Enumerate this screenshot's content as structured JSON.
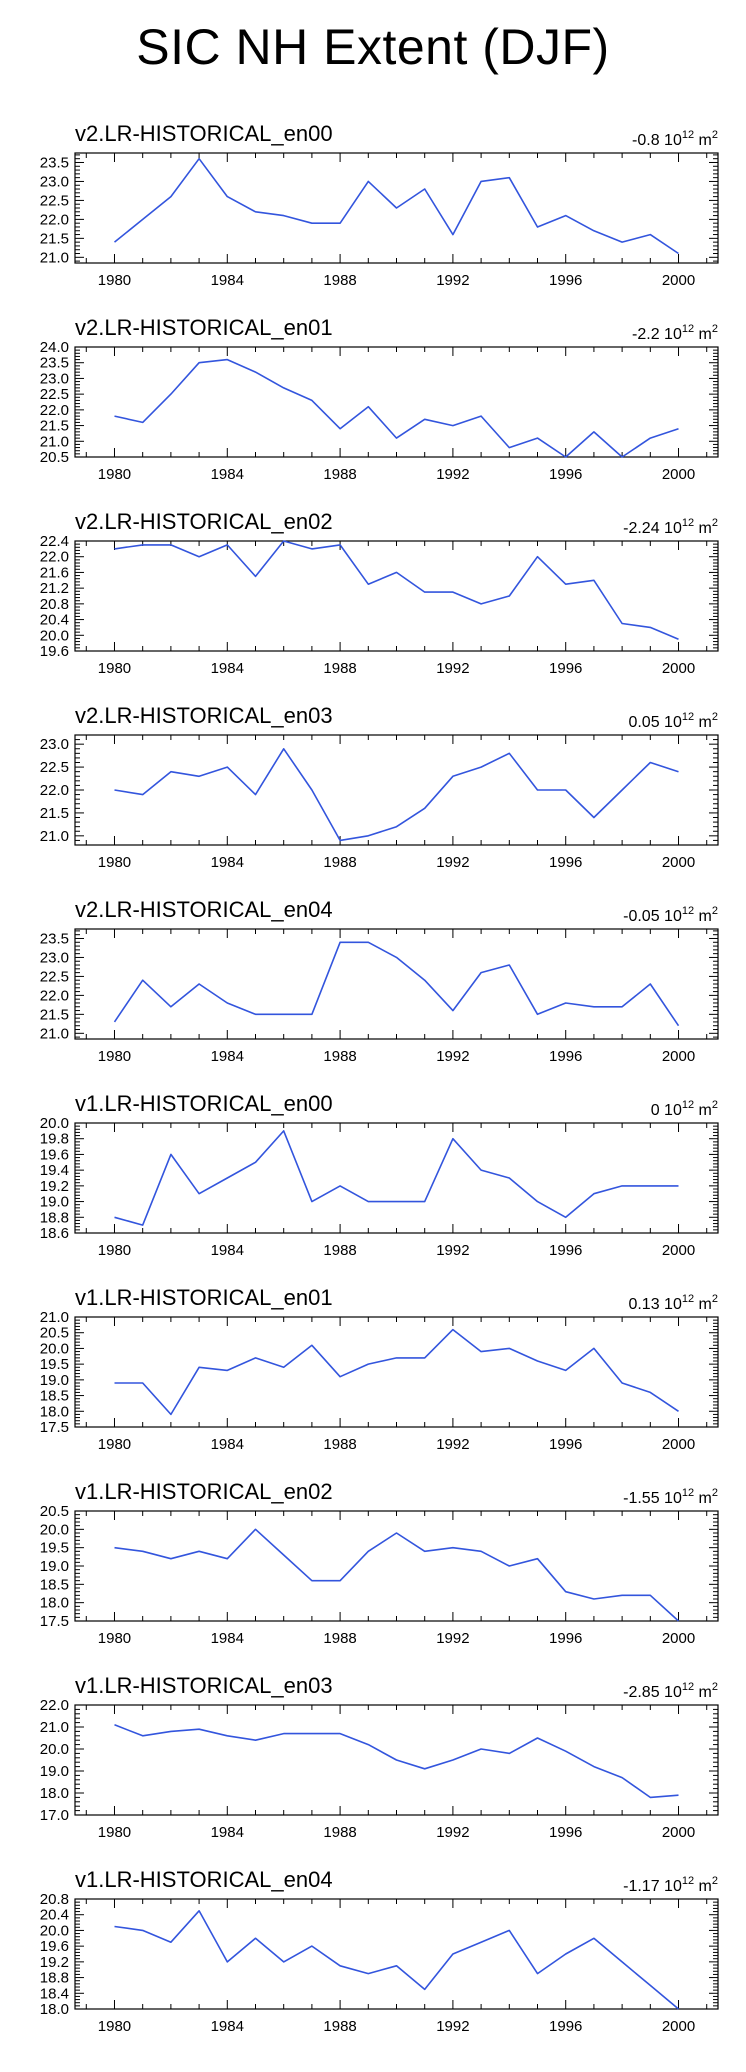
{
  "title": "SIC NH Extent (DJF)",
  "colors": {
    "line": "#3355dd",
    "axis": "#000000"
  },
  "chart_data": [
    {
      "type": "line",
      "title": "v2.LR-HISTORICAL_en00",
      "trend": {
        "value": "-0.8",
        "scale": "10",
        "exp": "12",
        "unit": "m",
        "unit_exp": "2"
      },
      "x": [
        1980,
        1981,
        1982,
        1983,
        1984,
        1985,
        1986,
        1987,
        1988,
        1989,
        1990,
        1991,
        1992,
        1993,
        1994,
        1995,
        1996,
        1997,
        1998,
        1999,
        2000
      ],
      "values": [
        21.4,
        22.0,
        22.6,
        23.6,
        22.6,
        22.2,
        22.1,
        21.9,
        21.9,
        23.0,
        22.3,
        22.8,
        21.6,
        23.0,
        23.1,
        21.8,
        22.1,
        21.7,
        21.4,
        21.6,
        21.1
      ],
      "xlim": [
        1978.6,
        2001.4
      ],
      "ylim": [
        20.85,
        23.75
      ],
      "xticks": [
        1980,
        1984,
        1988,
        1992,
        1996,
        2000
      ],
      "yticks": [
        21.0,
        21.5,
        22.0,
        22.5,
        23.0,
        23.5
      ],
      "ytick_labels": [
        "21.0",
        "21.5",
        "22.0",
        "22.5",
        "23.0",
        "23.5"
      ]
    },
    {
      "type": "line",
      "title": "v2.LR-HISTORICAL_en01",
      "trend": {
        "value": "-2.2",
        "scale": "10",
        "exp": "12",
        "unit": "m",
        "unit_exp": "2"
      },
      "x": [
        1980,
        1981,
        1982,
        1983,
        1984,
        1985,
        1986,
        1987,
        1988,
        1989,
        1990,
        1991,
        1992,
        1993,
        1994,
        1995,
        1996,
        1997,
        1998,
        1999,
        2000
      ],
      "values": [
        21.8,
        21.6,
        22.5,
        23.5,
        23.6,
        23.2,
        22.7,
        22.3,
        21.4,
        22.1,
        21.1,
        21.7,
        21.5,
        21.8,
        20.8,
        21.1,
        20.5,
        21.3,
        20.5,
        21.1,
        21.4
      ],
      "xlim": [
        1978.6,
        2001.4
      ],
      "ylim": [
        20.5,
        24.0
      ],
      "xticks": [
        1980,
        1984,
        1988,
        1992,
        1996,
        2000
      ],
      "yticks": [
        20.5,
        21.0,
        21.5,
        22.0,
        22.5,
        23.0,
        23.5,
        24.0
      ],
      "ytick_labels": [
        "20.5",
        "21.0",
        "21.5",
        "22.0",
        "22.5",
        "23.0",
        "23.5",
        "24.0"
      ]
    },
    {
      "type": "line",
      "title": "v2.LR-HISTORICAL_en02",
      "trend": {
        "value": "-2.24",
        "scale": "10",
        "exp": "12",
        "unit": "m",
        "unit_exp": "2"
      },
      "x": [
        1980,
        1981,
        1982,
        1983,
        1984,
        1985,
        1986,
        1987,
        1988,
        1989,
        1990,
        1991,
        1992,
        1993,
        1994,
        1995,
        1996,
        1997,
        1998,
        1999,
        2000
      ],
      "values": [
        22.2,
        22.3,
        22.3,
        22.0,
        22.3,
        21.5,
        22.4,
        22.2,
        22.3,
        21.3,
        21.6,
        21.1,
        21.1,
        20.8,
        21.0,
        22.0,
        21.3,
        21.4,
        20.3,
        20.2,
        19.9
      ],
      "xlim": [
        1978.6,
        2001.4
      ],
      "ylim": [
        19.6,
        22.4
      ],
      "xticks": [
        1980,
        1984,
        1988,
        1992,
        1996,
        2000
      ],
      "yticks": [
        19.6,
        20.0,
        20.4,
        20.8,
        21.2,
        21.6,
        22.0,
        22.4
      ],
      "ytick_labels": [
        "19.6",
        "20.0",
        "20.4",
        "20.8",
        "21.2",
        "21.6",
        "22.0",
        "22.4"
      ]
    },
    {
      "type": "line",
      "title": "v2.LR-HISTORICAL_en03",
      "trend": {
        "value": "0.05",
        "scale": "10",
        "exp": "12",
        "unit": "m",
        "unit_exp": "2"
      },
      "x": [
        1980,
        1981,
        1982,
        1983,
        1984,
        1985,
        1986,
        1987,
        1988,
        1989,
        1990,
        1991,
        1992,
        1993,
        1994,
        1995,
        1996,
        1997,
        1998,
        1999,
        2000
      ],
      "values": [
        22.0,
        21.9,
        22.4,
        22.3,
        22.5,
        21.9,
        22.9,
        22.0,
        20.9,
        21.0,
        21.2,
        21.6,
        22.3,
        22.5,
        22.8,
        22.0,
        22.0,
        21.4,
        22.0,
        22.6,
        22.4
      ],
      "xlim": [
        1978.6,
        2001.4
      ],
      "ylim": [
        20.8,
        23.2
      ],
      "xticks": [
        1980,
        1984,
        1988,
        1992,
        1996,
        2000
      ],
      "yticks": [
        21.0,
        21.5,
        22.0,
        22.5,
        23.0
      ],
      "ytick_labels": [
        "21.0",
        "21.5",
        "22.0",
        "22.5",
        "23.0"
      ]
    },
    {
      "type": "line",
      "title": "v2.LR-HISTORICAL_en04",
      "trend": {
        "value": "-0.05",
        "scale": "10",
        "exp": "12",
        "unit": "m",
        "unit_exp": "2"
      },
      "x": [
        1980,
        1981,
        1982,
        1983,
        1984,
        1985,
        1986,
        1987,
        1988,
        1989,
        1990,
        1991,
        1992,
        1993,
        1994,
        1995,
        1996,
        1997,
        1998,
        1999,
        2000
      ],
      "values": [
        21.3,
        22.4,
        21.7,
        22.3,
        21.8,
        21.5,
        21.5,
        21.5,
        23.4,
        23.4,
        23.0,
        22.4,
        21.6,
        22.6,
        22.8,
        21.5,
        21.8,
        21.7,
        21.7,
        22.3,
        21.2
      ],
      "xlim": [
        1978.6,
        2001.4
      ],
      "ylim": [
        20.85,
        23.75
      ],
      "xticks": [
        1980,
        1984,
        1988,
        1992,
        1996,
        2000
      ],
      "yticks": [
        21.0,
        21.5,
        22.0,
        22.5,
        23.0,
        23.5
      ],
      "ytick_labels": [
        "21.0",
        "21.5",
        "22.0",
        "22.5",
        "23.0",
        "23.5"
      ]
    },
    {
      "type": "line",
      "title": "v1.LR-HISTORICAL_en00",
      "trend": {
        "value": "0",
        "scale": "10",
        "exp": "12",
        "unit": "m",
        "unit_exp": "2"
      },
      "x": [
        1980,
        1981,
        1982,
        1983,
        1984,
        1985,
        1986,
        1987,
        1988,
        1989,
        1990,
        1991,
        1992,
        1993,
        1994,
        1995,
        1996,
        1997,
        1998,
        1999,
        2000
      ],
      "values": [
        18.8,
        18.7,
        19.6,
        19.1,
        19.3,
        19.5,
        19.9,
        19.0,
        19.2,
        19.0,
        19.0,
        19.0,
        19.8,
        19.4,
        19.3,
        19.0,
        18.8,
        19.1,
        19.2,
        19.2,
        19.2
      ],
      "xlim": [
        1978.6,
        2001.4
      ],
      "ylim": [
        18.6,
        20.0
      ],
      "xticks": [
        1980,
        1984,
        1988,
        1992,
        1996,
        2000
      ],
      "yticks": [
        18.6,
        18.8,
        19.0,
        19.2,
        19.4,
        19.6,
        19.8,
        20.0
      ],
      "ytick_labels": [
        "18.6",
        "18.8",
        "19.0",
        "19.2",
        "19.4",
        "19.6",
        "19.8",
        "20.0"
      ]
    },
    {
      "type": "line",
      "title": "v1.LR-HISTORICAL_en01",
      "trend": {
        "value": "0.13",
        "scale": "10",
        "exp": "12",
        "unit": "m",
        "unit_exp": "2"
      },
      "x": [
        1980,
        1981,
        1982,
        1983,
        1984,
        1985,
        1986,
        1987,
        1988,
        1989,
        1990,
        1991,
        1992,
        1993,
        1994,
        1995,
        1996,
        1997,
        1998,
        1999,
        2000
      ],
      "values": [
        18.9,
        18.9,
        17.9,
        19.4,
        19.3,
        19.7,
        19.4,
        20.1,
        19.1,
        19.5,
        19.7,
        19.7,
        20.6,
        19.9,
        20.0,
        19.6,
        19.3,
        20.0,
        18.9,
        18.6,
        18.0
      ],
      "xlim": [
        1978.6,
        2001.4
      ],
      "ylim": [
        17.5,
        21.0
      ],
      "xticks": [
        1980,
        1984,
        1988,
        1992,
        1996,
        2000
      ],
      "yticks": [
        17.5,
        18.0,
        18.5,
        19.0,
        19.5,
        20.0,
        20.5,
        21.0
      ],
      "ytick_labels": [
        "17.5",
        "18.0",
        "18.5",
        "19.0",
        "19.5",
        "20.0",
        "20.5",
        "21.0"
      ]
    },
    {
      "type": "line",
      "title": "v1.LR-HISTORICAL_en02",
      "trend": {
        "value": "-1.55",
        "scale": "10",
        "exp": "12",
        "unit": "m",
        "unit_exp": "2"
      },
      "x": [
        1980,
        1981,
        1982,
        1983,
        1984,
        1985,
        1986,
        1987,
        1988,
        1989,
        1990,
        1991,
        1992,
        1993,
        1994,
        1995,
        1996,
        1997,
        1998,
        1999,
        2000
      ],
      "values": [
        19.5,
        19.4,
        19.2,
        19.4,
        19.2,
        20.0,
        19.3,
        18.6,
        18.6,
        19.4,
        19.9,
        19.4,
        19.5,
        19.4,
        19.0,
        19.2,
        18.3,
        18.1,
        18.2,
        18.2,
        17.5
      ],
      "xlim": [
        1978.6,
        2001.4
      ],
      "ylim": [
        17.5,
        20.5
      ],
      "xticks": [
        1980,
        1984,
        1988,
        1992,
        1996,
        2000
      ],
      "yticks": [
        17.5,
        18.0,
        18.5,
        19.0,
        19.5,
        20.0,
        20.5
      ],
      "ytick_labels": [
        "17.5",
        "18.0",
        "18.5",
        "19.0",
        "19.5",
        "20.0",
        "20.5"
      ]
    },
    {
      "type": "line",
      "title": "v1.LR-HISTORICAL_en03",
      "trend": {
        "value": "-2.85",
        "scale": "10",
        "exp": "12",
        "unit": "m",
        "unit_exp": "2"
      },
      "x": [
        1980,
        1981,
        1982,
        1983,
        1984,
        1985,
        1986,
        1987,
        1988,
        1989,
        1990,
        1991,
        1992,
        1993,
        1994,
        1995,
        1996,
        1997,
        1998,
        1999,
        2000
      ],
      "values": [
        21.1,
        20.6,
        20.8,
        20.9,
        20.6,
        20.4,
        20.7,
        20.7,
        20.7,
        20.2,
        19.5,
        19.1,
        19.5,
        20.0,
        19.8,
        20.5,
        19.9,
        19.2,
        18.7,
        17.8,
        17.9
      ],
      "xlim": [
        1978.6,
        2001.4
      ],
      "ylim": [
        17.0,
        22.0
      ],
      "xticks": [
        1980,
        1984,
        1988,
        1992,
        1996,
        2000
      ],
      "yticks": [
        17.0,
        18.0,
        19.0,
        20.0,
        21.0,
        22.0
      ],
      "ytick_labels": [
        "17.0",
        "18.0",
        "19.0",
        "20.0",
        "21.0",
        "22.0"
      ]
    },
    {
      "type": "line",
      "title": "v1.LR-HISTORICAL_en04",
      "trend": {
        "value": "-1.17",
        "scale": "10",
        "exp": "12",
        "unit": "m",
        "unit_exp": "2"
      },
      "x": [
        1980,
        1981,
        1982,
        1983,
        1984,
        1985,
        1986,
        1987,
        1988,
        1989,
        1990,
        1991,
        1992,
        1993,
        1994,
        1995,
        1996,
        1997,
        1998,
        1999,
        2000
      ],
      "values": [
        20.1,
        20.0,
        19.7,
        20.5,
        19.2,
        19.8,
        19.2,
        19.6,
        19.1,
        18.9,
        19.1,
        18.5,
        19.4,
        19.7,
        20.0,
        18.9,
        19.4,
        19.8,
        19.2,
        18.6,
        18.0
      ],
      "xlim": [
        1978.6,
        2001.4
      ],
      "ylim": [
        18.0,
        20.8
      ],
      "xticks": [
        1980,
        1984,
        1988,
        1992,
        1996,
        2000
      ],
      "yticks": [
        18.0,
        18.4,
        18.8,
        19.2,
        19.6,
        20.0,
        20.4,
        20.8
      ],
      "ytick_labels": [
        "18.0",
        "18.4",
        "18.8",
        "19.2",
        "19.6",
        "20.0",
        "20.4",
        "20.8"
      ]
    }
  ]
}
